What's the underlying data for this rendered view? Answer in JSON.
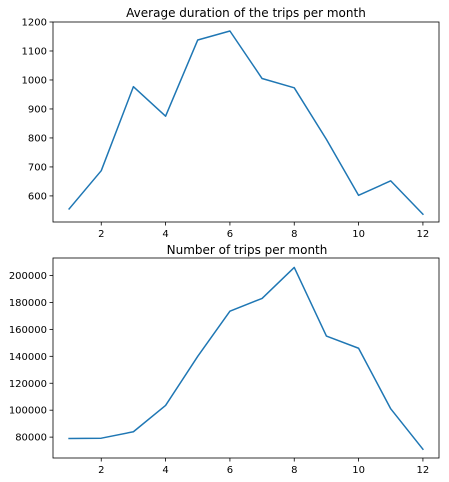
{
  "colors": {
    "series": "#1f77b4",
    "axes": "#000000",
    "background": "#ffffff"
  },
  "chart_data": [
    {
      "type": "line",
      "title": "Average duration of the trips per month",
      "xlabel": "",
      "ylabel": "",
      "xlim": [
        0.5,
        12.5
      ],
      "ylim": [
        510,
        1200
      ],
      "xticks": [
        2,
        4,
        6,
        8,
        10,
        12
      ],
      "yticks": [
        600,
        700,
        800,
        900,
        1000,
        1100,
        1200
      ],
      "grid": false,
      "x": [
        1,
        2,
        3,
        4,
        5,
        6,
        7,
        8,
        9,
        10,
        11,
        12
      ],
      "series": [
        {
          "values": [
            555,
            687,
            977,
            875,
            1138,
            1169,
            1005,
            973,
            795,
            602,
            652,
            537
          ]
        }
      ]
    },
    {
      "type": "line",
      "title": "Number of trips per month",
      "xlabel": "",
      "ylabel": "",
      "xlim": [
        0.5,
        12.5
      ],
      "ylim": [
        64500,
        213000
      ],
      "xticks": [
        2,
        4,
        6,
        8,
        10,
        12
      ],
      "yticks": [
        80000,
        100000,
        120000,
        140000,
        160000,
        180000,
        200000
      ],
      "grid": false,
      "x": [
        1,
        2,
        3,
        4,
        5,
        6,
        7,
        8,
        9,
        10,
        11,
        12
      ],
      "series": [
        {
          "values": [
            79000,
            79200,
            84000,
            103500,
            140000,
            173500,
            183000,
            206000,
            155000,
            146000,
            101000,
            71000
          ]
        }
      ]
    }
  ]
}
